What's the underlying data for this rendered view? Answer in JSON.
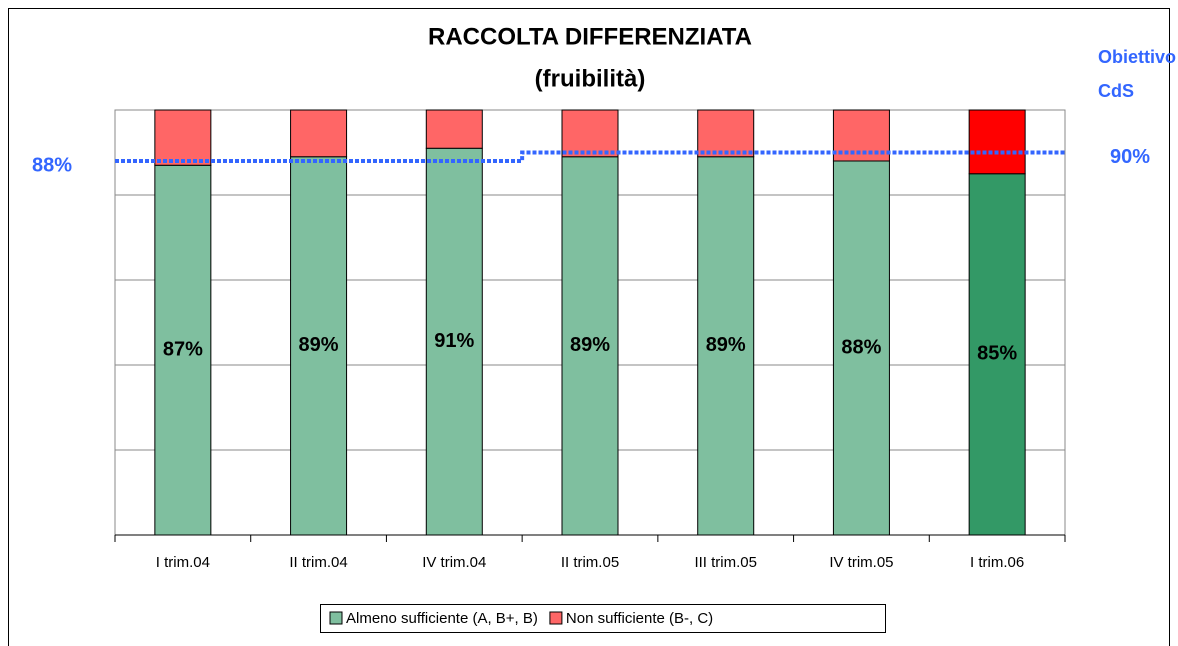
{
  "chart_data": {
    "type": "stacked_bar",
    "title": "RACCOLTA DIFFERENZIATA",
    "subtitle": "(fruibilità)",
    "categories": [
      "I trim.04",
      "II trim.04",
      "IV trim.04",
      "II trim.05",
      "III trim.05",
      "IV trim.05",
      "I trim.06"
    ],
    "series": [
      {
        "name": "Almeno sufficiente (A, B+, B)",
        "color": "#7fbf9f",
        "point_colors": [
          null,
          null,
          null,
          null,
          null,
          null,
          "#339966"
        ],
        "values": [
          87,
          89,
          91,
          89,
          89,
          88,
          85
        ],
        "value_labels": [
          "87%",
          "89%",
          "91%",
          "89%",
          "89%",
          "88%",
          "85%"
        ]
      },
      {
        "name": "Non sufficiente (B-, C)",
        "color": "#ff6666",
        "point_colors": [
          null,
          null,
          null,
          null,
          null,
          null,
          "#ff0000"
        ],
        "values": [
          13,
          11,
          9,
          11,
          11,
          12,
          15
        ]
      }
    ],
    "target": {
      "name": "Obiettivo CdS",
      "color": "#3366ff",
      "values": [
        88,
        88,
        88,
        90,
        90,
        90,
        90
      ]
    },
    "annotations": [
      {
        "text": "88%",
        "value": 88,
        "side": "left"
      },
      {
        "text": "90%",
        "value": 90,
        "side": "right"
      }
    ],
    "ylim": [
      0,
      100
    ],
    "yticks": [
      0,
      20,
      40,
      60,
      80,
      100
    ],
    "grid": true,
    "legend": "bottom"
  }
}
